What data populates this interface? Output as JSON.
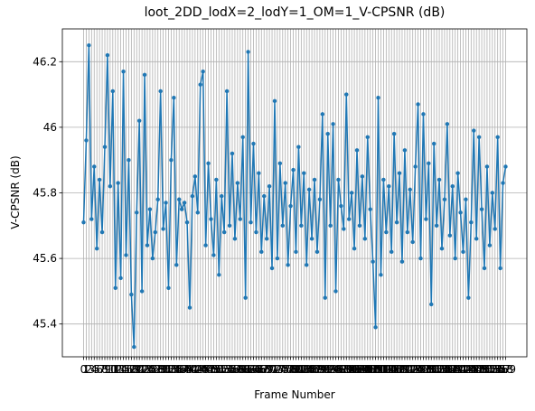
{
  "chart_data": {
    "type": "line",
    "title": "loot_2DD_lodX=2_lodY=1_OM=1_V-CPSNR (dB)",
    "xlabel": "Frame Number",
    "ylabel": "V-CPSNR (dB)",
    "color": "#1f77b4",
    "grid": true,
    "x": [
      0,
      1,
      2,
      3,
      4,
      5,
      6,
      7,
      8,
      9,
      10,
      11,
      12,
      13,
      14,
      15,
      16,
      17,
      18,
      19,
      20,
      21,
      22,
      23,
      24,
      25,
      26,
      27,
      28,
      29,
      30,
      31,
      32,
      33,
      34,
      35,
      36,
      37,
      38,
      39,
      40,
      41,
      42,
      43,
      44,
      45,
      46,
      47,
      48,
      49,
      50,
      51,
      52,
      53,
      54,
      55,
      56,
      57,
      58,
      59,
      60,
      61,
      62,
      63,
      64,
      65,
      66,
      67,
      68,
      69,
      70,
      71,
      72,
      73,
      74,
      75,
      76,
      77,
      78,
      79,
      80,
      81,
      82,
      83,
      84,
      85,
      86,
      87,
      88,
      89,
      90,
      91,
      92,
      93,
      94,
      95,
      96,
      97,
      98,
      99,
      100,
      101,
      102,
      103,
      104,
      105,
      106,
      107,
      108,
      109,
      110,
      111,
      112,
      113,
      114,
      115,
      116,
      117,
      118,
      119,
      120,
      121,
      122,
      123,
      124,
      125,
      126,
      127,
      128,
      129,
      130,
      131,
      132,
      133,
      134,
      135,
      136,
      137,
      138,
      139,
      140,
      141,
      142,
      143,
      144,
      145,
      146,
      147,
      148,
      149,
      150,
      151,
      152,
      153,
      154,
      155,
      156,
      157,
      158,
      159
    ],
    "values": [
      45.71,
      45.96,
      46.25,
      45.72,
      45.88,
      45.63,
      45.84,
      45.68,
      45.94,
      46.22,
      45.82,
      46.11,
      45.51,
      45.83,
      45.54,
      46.17,
      45.61,
      45.9,
      45.49,
      45.33,
      45.74,
      46.02,
      45.5,
      46.16,
      45.64,
      45.75,
      45.6,
      45.68,
      45.78,
      46.11,
      45.69,
      45.77,
      45.51,
      45.9,
      46.09,
      45.58,
      45.78,
      45.75,
      45.77,
      45.71,
      45.45,
      45.79,
      45.85,
      45.74,
      46.13,
      46.17,
      45.64,
      45.89,
      45.72,
      45.61,
      45.84,
      45.55,
      45.79,
      45.68,
      46.11,
      45.7,
      45.92,
      45.66,
      45.83,
      45.72,
      45.97,
      45.48,
      46.23,
      45.71,
      45.95,
      45.68,
      45.86,
      45.62,
      45.79,
      45.66,
      45.82,
      45.57,
      46.08,
      45.6,
      45.89,
      45.7,
      45.83,
      45.58,
      45.76,
      45.87,
      45.62,
      45.94,
      45.7,
      45.86,
      45.58,
      45.81,
      45.66,
      45.84,
      45.62,
      45.78,
      46.04,
      45.48,
      45.98,
      45.7,
      46.01,
      45.5,
      45.84,
      45.76,
      45.69,
      46.1,
      45.72,
      45.8,
      45.63,
      45.93,
      45.7,
      45.85,
      45.66,
      45.97,
      45.75,
      45.59,
      45.39,
      46.09,
      45.55,
      45.84,
      45.68,
      45.82,
      45.62,
      45.98,
      45.71,
      45.86,
      45.59,
      45.93,
      45.68,
      45.81,
      45.65,
      45.88,
      46.07,
      45.6,
      46.04,
      45.72,
      45.89,
      45.46,
      45.95,
      45.7,
      45.84,
      45.63,
      45.78,
      46.01,
      45.67,
      45.82,
      45.6,
      45.86,
      45.74,
      45.62,
      45.78,
      45.48,
      45.71,
      45.99,
      45.66,
      45.97,
      45.75,
      45.57,
      45.88,
      45.64,
      45.8,
      45.69,
      45.97,
      45.57,
      45.83,
      45.88
    ],
    "xlim": [
      -8,
      167
    ],
    "xticks": [
      0,
      1,
      2,
      3,
      4,
      5,
      6,
      7,
      8,
      9,
      10,
      11,
      12,
      13,
      14,
      15,
      16,
      17,
      18,
      19,
      20,
      21,
      22,
      23,
      24,
      25,
      26,
      27,
      28,
      29,
      30,
      31,
      32,
      33,
      34,
      35,
      36,
      37,
      38,
      39,
      40,
      41,
      42,
      43,
      44,
      45,
      46,
      47,
      48,
      49,
      50,
      51,
      52,
      53,
      54,
      55,
      56,
      57,
      58,
      59,
      60,
      61,
      62,
      63,
      64,
      65,
      66,
      67,
      68,
      69,
      70,
      71,
      72,
      73,
      74,
      75,
      76,
      77,
      78,
      79,
      80,
      81,
      82,
      83,
      84,
      85,
      86,
      87,
      88,
      89,
      90,
      91,
      92,
      93,
      94,
      95,
      96,
      97,
      98,
      99,
      100,
      101,
      102,
      103,
      104,
      105,
      106,
      107,
      108,
      109,
      110,
      111,
      112,
      113,
      114,
      115,
      116,
      117,
      118,
      119,
      120,
      121,
      122,
      123,
      124,
      125,
      126,
      127,
      128,
      129,
      130,
      131,
      132,
      133,
      134,
      135,
      136,
      137,
      138,
      139,
      140,
      141,
      142,
      143,
      144,
      145,
      146,
      147,
      148,
      149,
      150,
      151,
      152,
      153,
      154,
      155,
      156,
      157,
      158,
      159
    ],
    "ylim": [
      45.3,
      46.3
    ],
    "yticks": [
      45.4,
      45.6,
      45.8,
      46.0,
      46.2
    ]
  }
}
